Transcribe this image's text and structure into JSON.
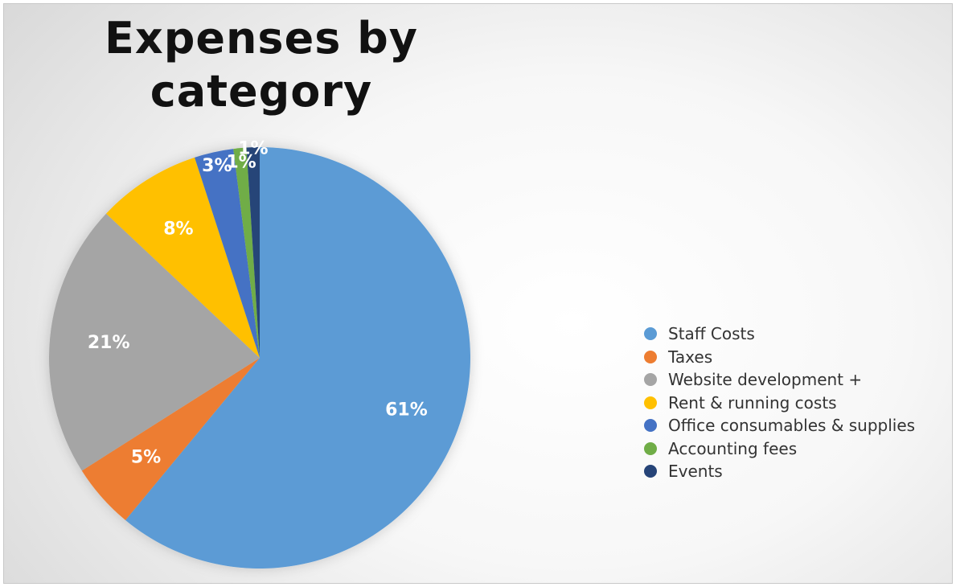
{
  "chart_data": {
    "type": "pie",
    "title": "Expenses by category",
    "legend_position": "right",
    "slices": [
      {
        "label": "Staff Costs",
        "value": 61,
        "display": "61%",
        "color": "#5b9bd5"
      },
      {
        "label": "Taxes",
        "value": 5,
        "display": "5%",
        "color": "#ed7d31"
      },
      {
        "label": "Website development +",
        "value": 21,
        "display": "21%",
        "color": "#a5a5a5"
      },
      {
        "label": "Rent & running costs",
        "value": 8,
        "display": "8%",
        "color": "#ffc000"
      },
      {
        "label": "Office consumables & supplies",
        "value": 3,
        "display": "3%",
        "color": "#4472c4"
      },
      {
        "label": "Accounting fees",
        "value": 1,
        "display": "1%",
        "color": "#70ad47"
      },
      {
        "label": "Events",
        "value": 1,
        "display": "1%",
        "color": "#264478"
      }
    ]
  }
}
